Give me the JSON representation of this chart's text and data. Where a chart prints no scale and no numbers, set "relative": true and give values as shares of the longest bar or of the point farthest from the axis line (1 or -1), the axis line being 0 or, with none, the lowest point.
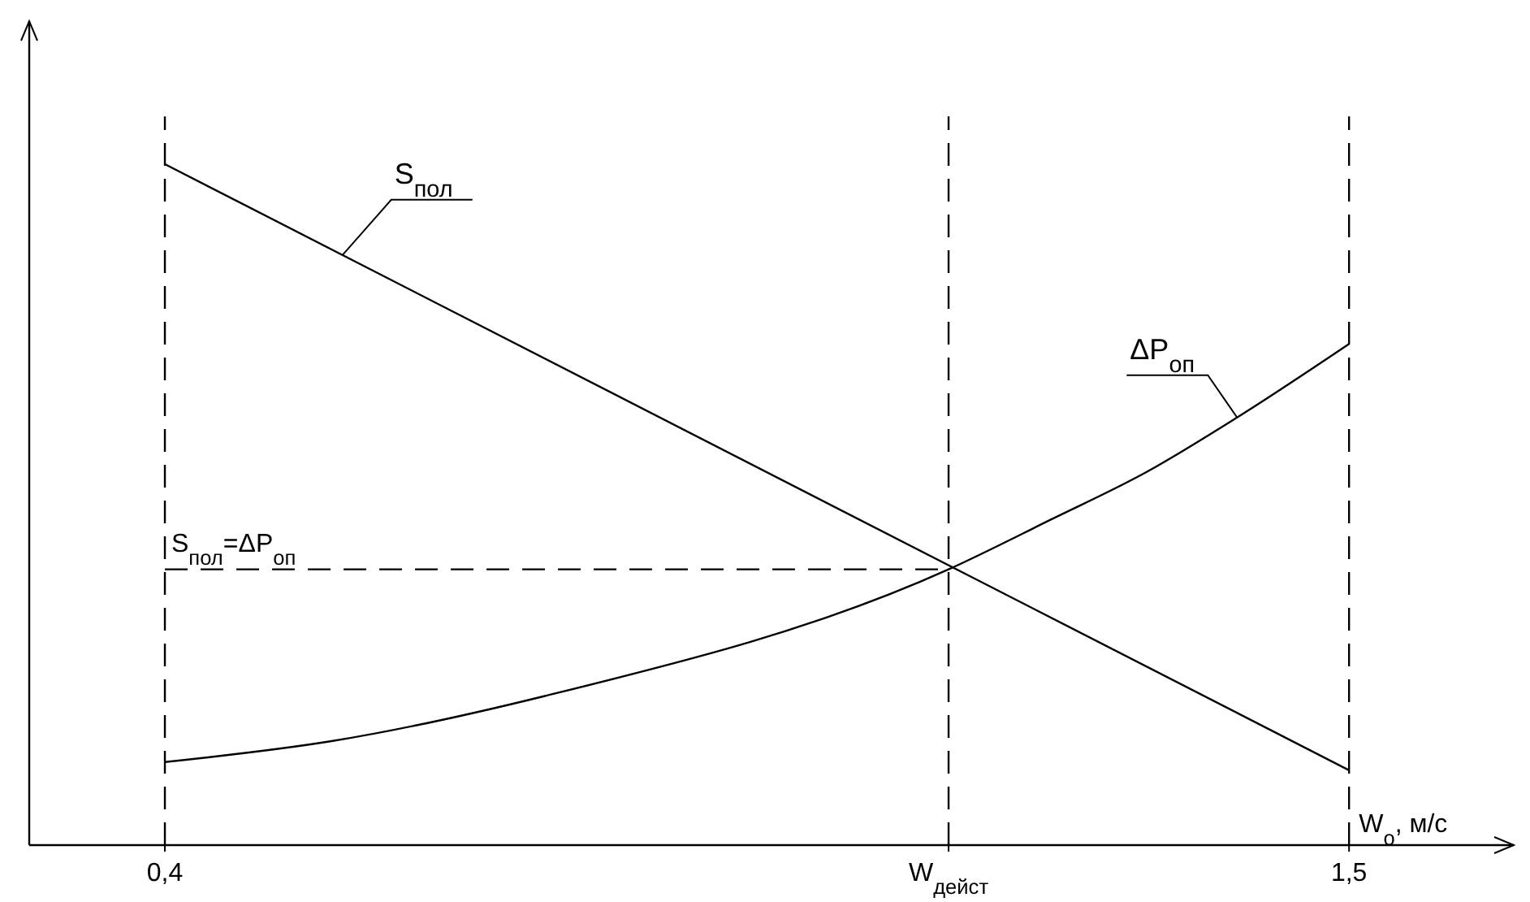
{
  "chart_data": {
    "type": "line",
    "relative": true,
    "xlabel": "W$_{о}$, м/с",
    "xlim": [
      0.274,
      1.653
    ],
    "xticks": [
      {
        "value": 0.4,
        "label": "0,4"
      },
      {
        "value": 1.128,
        "label": "W$_{дейст}$"
      },
      {
        "value": 1.5,
        "label": "1,5"
      }
    ],
    "series": [
      {
        "name": "S$_{пол}$",
        "color": "#000000",
        "x": [
          0.4,
          1.5
        ],
        "values": [
          1,
          0.11
        ]
      },
      {
        "name": "ΔP$_{оп}$",
        "color": "#000000",
        "x": [
          0.4,
          0.556,
          0.753,
          1.128,
          1.223,
          1.312,
          1.396,
          1.5
        ],
        "values": [
          0.122,
          0.153,
          0.219,
          0.405,
          0.478,
          0.548,
          0.628,
          0.736
        ]
      }
    ],
    "ref_lines": [
      {
        "axis": "x",
        "value": 0.4,
        "line_style": "dashed"
      },
      {
        "axis": "x",
        "value": 1.128,
        "line_style": "dashed"
      },
      {
        "axis": "x",
        "value": 1.5,
        "line_style": "dashed"
      },
      {
        "axis": "y",
        "value": 0.405,
        "label": "S$_{пол}$=ΔP$_{оп}$",
        "line_style": "dashed"
      }
    ],
    "grid": false,
    "legend": false,
    "marker": "none",
    "line_style": "solid"
  }
}
